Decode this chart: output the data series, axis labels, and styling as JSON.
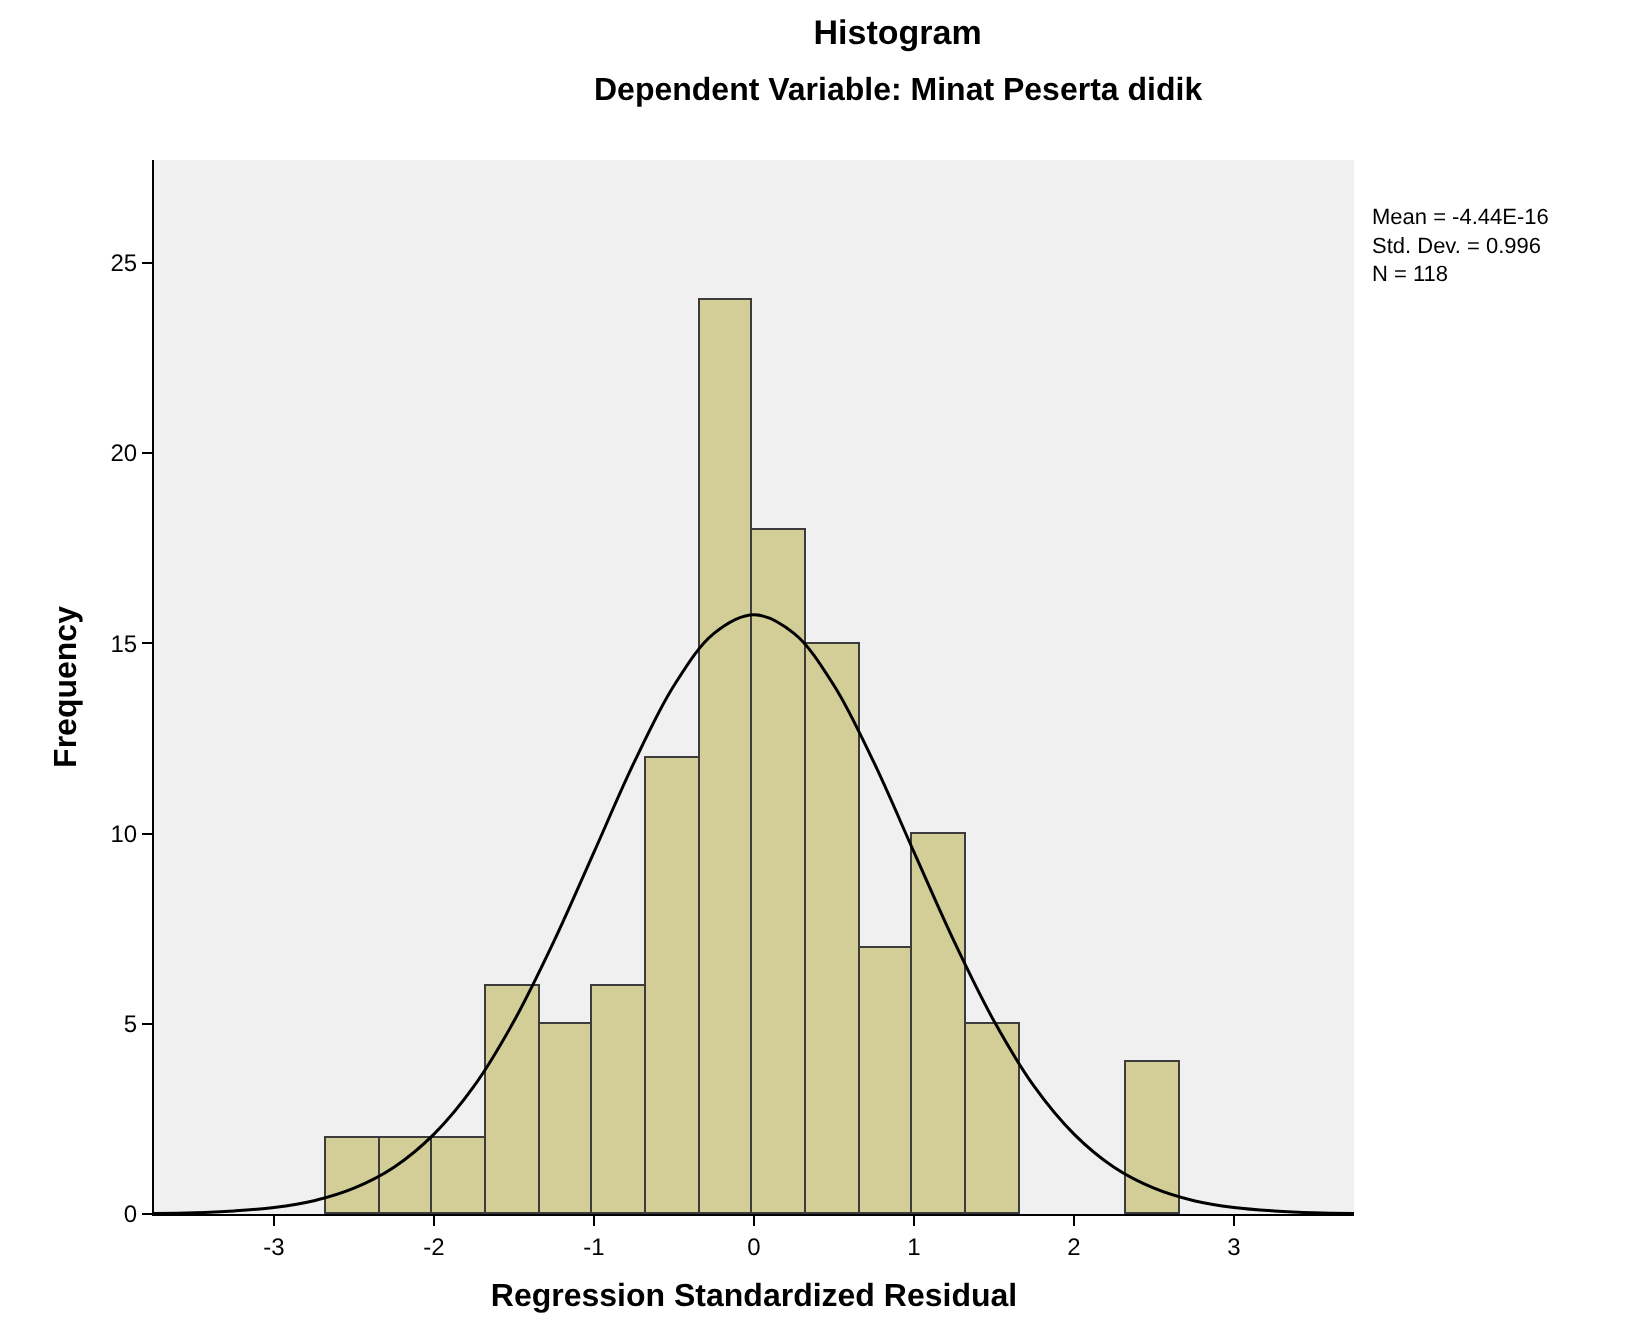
{
  "chart_data": {
    "type": "histogram",
    "title": "Histogram",
    "subtitle": "Dependent Variable: Minat Peserta didik",
    "xlabel": "Regression Standardized Residual",
    "ylabel": "Frequency",
    "bins": [
      -2.67,
      -2.34,
      -2.01,
      -1.67,
      -1.34,
      -1.01,
      -0.67,
      -0.34,
      -0.01,
      0.33,
      0.66,
      0.99,
      1.33,
      1.66,
      2.32,
      2.66
    ],
    "values": [
      2,
      2,
      2,
      6,
      5,
      6,
      12,
      24,
      18,
      15,
      7,
      10,
      5,
      0,
      4
    ],
    "color": "#d3ce97",
    "series": [
      {
        "type": "line",
        "color": "#000000",
        "x": [
          -3.75,
          -3.5,
          -3.25,
          -3,
          -2.75,
          -2.5,
          -2.25,
          -2,
          -1.75,
          -1.5,
          -1.25,
          -1,
          -0.75,
          -0.5,
          -0.25,
          0,
          0.25,
          0.5,
          0.75,
          1,
          1.25,
          1.5,
          1.75,
          2,
          2.25,
          2.5,
          2.75,
          3,
          3.25,
          3.5,
          3.75
        ],
        "values": [
          0.01,
          0.03,
          0.08,
          0.17,
          0.35,
          0.68,
          1.23,
          2.1,
          3.36,
          5.07,
          7.17,
          9.51,
          11.86,
          13.89,
          15.26,
          15.75,
          15.26,
          13.89,
          11.86,
          9.51,
          7.17,
          5.07,
          3.36,
          2.1,
          1.23,
          0.68,
          0.35,
          0.17,
          0.08,
          0.03,
          0.01
        ]
      }
    ],
    "annotations": [
      "Mean = -4.44E-16",
      "Std. Dev. = 0.996",
      "N = 118"
    ],
    "xlim": [
      -3.75,
      3.75
    ],
    "xticks": [
      -3,
      -2,
      -1,
      0,
      1,
      2,
      3
    ],
    "ylim": [
      0,
      27.7
    ],
    "yticks": [
      0,
      5,
      10,
      15,
      20,
      25
    ],
    "grid": false,
    "marker": "none"
  }
}
